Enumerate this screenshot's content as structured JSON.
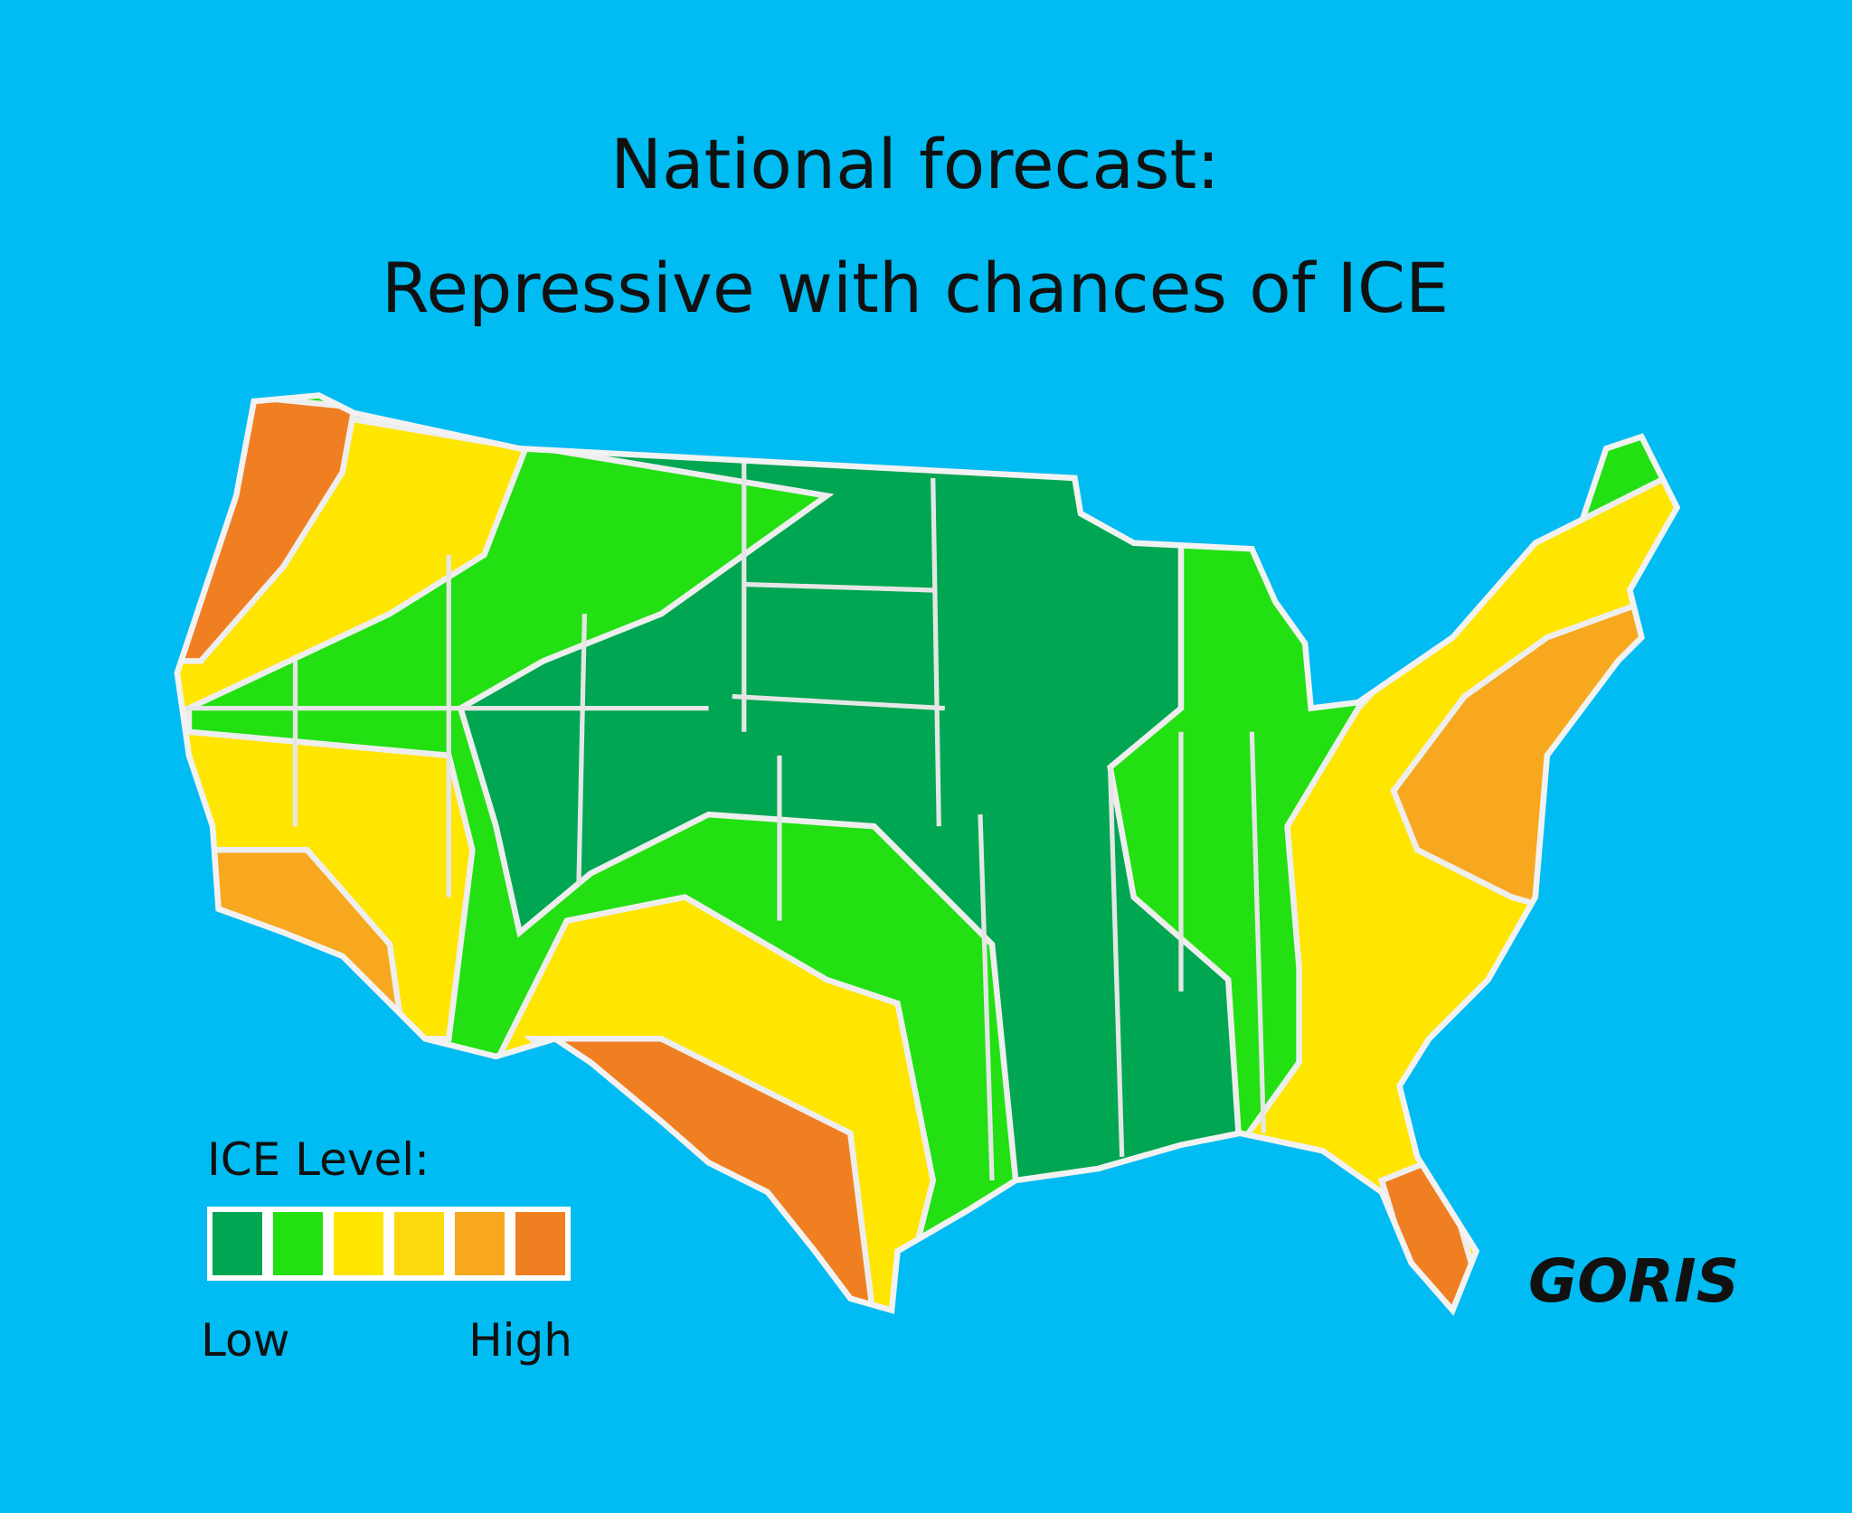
{
  "title": {
    "line1": "National forecast:",
    "line2": "Repressive with chances of ICE"
  },
  "legend": {
    "title": "ICE Level:",
    "low": "Low",
    "high": "High",
    "swatches": [
      "#00a651",
      "#22e012",
      "#ffe600",
      "#fcd90d",
      "#f7a81e",
      "#f07f22"
    ]
  },
  "signature": "GORIS"
}
